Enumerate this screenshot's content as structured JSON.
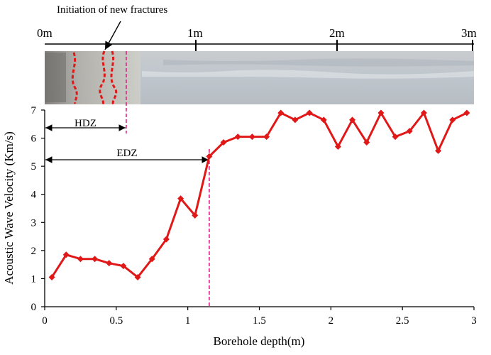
{
  "chart_data": {
    "type": "line",
    "xlabel": "Borehole depth(m)",
    "ylabel": "Acoustic Wave Velocity (Km/s)",
    "xlim": [
      0,
      3
    ],
    "ylim": [
      0,
      7
    ],
    "xticks": [
      0,
      0.5,
      1,
      1.5,
      2,
      2.5,
      3
    ],
    "yticks": [
      0,
      1,
      2,
      3,
      4,
      5,
      6,
      7
    ],
    "series": [
      {
        "color": "#e01818",
        "marker": "diamond",
        "x": [
          0.05,
          0.15,
          0.25,
          0.35,
          0.45,
          0.55,
          0.65,
          0.75,
          0.85,
          0.95,
          1.05,
          1.15,
          1.25,
          1.35,
          1.45,
          1.55,
          1.65,
          1.75,
          1.85,
          1.95,
          2.05,
          2.15,
          2.25,
          2.35,
          2.45,
          2.55,
          2.65,
          2.75,
          2.85,
          2.95
        ],
        "y": [
          1.05,
          1.85,
          1.7,
          1.7,
          1.55,
          1.45,
          1.05,
          1.7,
          2.4,
          3.85,
          3.25,
          5.35,
          5.85,
          6.05,
          6.05,
          6.05,
          6.9,
          6.65,
          6.9,
          6.65,
          5.7,
          6.65,
          5.85,
          6.9,
          6.05,
          6.25,
          6.9,
          5.55,
          6.65,
          6.9
        ]
      }
    ],
    "annotations": {
      "hdz": {
        "label": "HDZ",
        "depth": 0.57
      },
      "edz": {
        "label": "EDZ",
        "depth": 1.15
      },
      "fracture_note": "Initiation of new fractures"
    },
    "photo_scale": {
      "labels": [
        "0m",
        "1m",
        "2m",
        "3m"
      ]
    },
    "colors": {
      "series": "#e01818",
      "dashed_boundary": "#e0208c",
      "fracture_trace": "#e01818"
    }
  }
}
